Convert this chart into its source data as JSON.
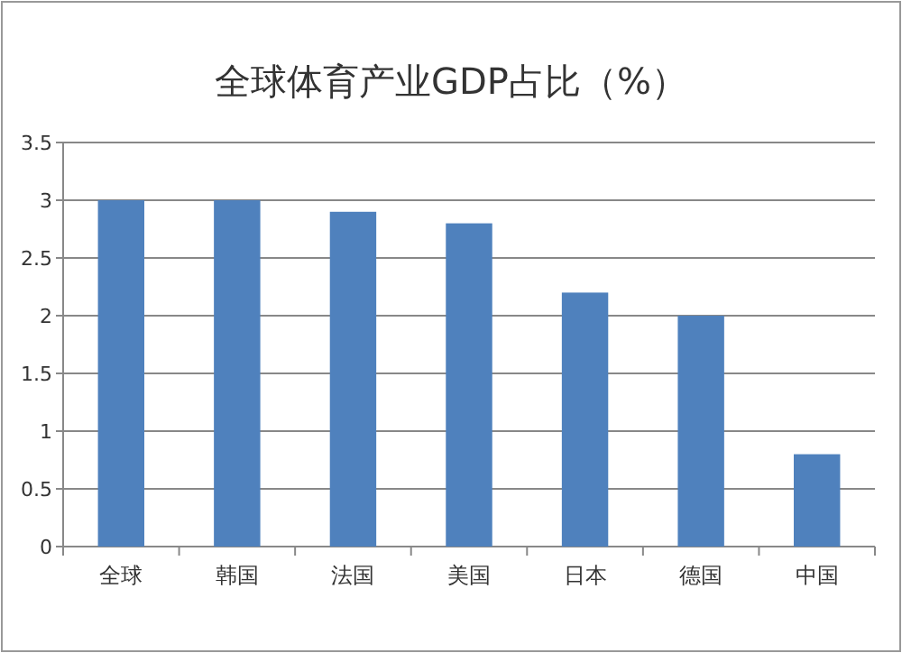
{
  "chart_data": {
    "type": "bar",
    "title": "全球体育产业GDP占比（%）",
    "categories": [
      "全球",
      "韩国",
      "法国",
      "美国",
      "日本",
      "德国",
      "中国"
    ],
    "values": [
      3,
      3,
      2.9,
      2.8,
      2.2,
      2.0,
      0.8
    ],
    "color": "#4f81bd",
    "ylim": [
      0,
      3.5
    ],
    "yticks": [
      0,
      0.5,
      1,
      1.5,
      2,
      2.5,
      3,
      3.5
    ],
    "grid": "y"
  }
}
